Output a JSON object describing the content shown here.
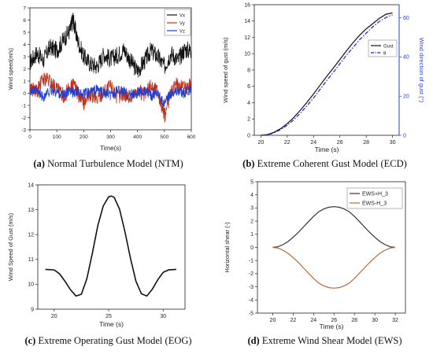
{
  "captions": [
    {
      "letter": "(a)",
      "text": " Normal Turbulence Model (NTM)"
    },
    {
      "letter": "(b)",
      "text": " Extreme Coherent Gust Model (ECD)"
    },
    {
      "letter": "(c)",
      "text": " Extreme Operating Gust Model (EOG)"
    },
    {
      "letter": "(d)",
      "text": " Extreme Wind Shear Model (EWS)"
    }
  ],
  "chart_data": [
    {
      "type": "line",
      "title": "",
      "xlabel": "Time(s)",
      "ylabel": "Wind speed(m/s)",
      "xlim": [
        0,
        600
      ],
      "ylim": [
        -3,
        7
      ],
      "xticks": [
        0,
        100,
        200,
        300,
        400,
        500,
        600
      ],
      "yticks": [
        -3,
        -2,
        -1,
        0,
        1,
        2,
        3,
        4,
        5,
        6,
        7
      ],
      "legend_position": "top-right",
      "x": [
        0,
        25,
        50,
        75,
        100,
        125,
        150,
        160,
        175,
        200,
        225,
        250,
        275,
        300,
        325,
        350,
        375,
        400,
        425,
        450,
        475,
        500,
        525,
        550,
        575,
        600
      ],
      "series": [
        {
          "name": "Vx",
          "color": "#111111",
          "values": [
            2.5,
            3.3,
            2.7,
            3.8,
            3.5,
            4.4,
            5.2,
            6.1,
            4.5,
            3.0,
            2.4,
            2.2,
            3.2,
            2.8,
            3.1,
            3.6,
            2.6,
            1.8,
            2.6,
            3.5,
            3.0,
            2.2,
            3.3,
            2.7,
            3.6,
            3.5
          ]
        },
        {
          "name": "Vy",
          "color": "#c0301a",
          "values": [
            0.5,
            0.1,
            1.2,
            1.0,
            0.3,
            -0.2,
            0.4,
            0.8,
            0.0,
            -0.8,
            -0.1,
            -0.5,
            0.2,
            0.6,
            -0.3,
            0.0,
            -0.4,
            0.3,
            -0.2,
            0.6,
            0.2,
            -1.9,
            0.2,
            0.8,
            0.4,
            1.0
          ]
        },
        {
          "name": "Vz",
          "color": "#1f3fd1",
          "values": [
            0.3,
            0.1,
            -0.3,
            0.2,
            0.1,
            -0.2,
            0.3,
            0.0,
            0.2,
            -0.1,
            0.1,
            0.3,
            0.0,
            -0.2,
            0.2,
            0.1,
            -0.1,
            0.0,
            0.2,
            -0.2,
            0.1,
            -0.9,
            0.1,
            0.2,
            0.0,
            0.3
          ]
        }
      ]
    },
    {
      "type": "line",
      "title": "",
      "xlabel": "Time (s)",
      "ylabel": "Wind speed of gust (m/s)",
      "y2label": "Wind direction of gust (°)",
      "xlim": [
        19.5,
        30.5
      ],
      "ylim": [
        0,
        16
      ],
      "y2lim": [
        0,
        66.7
      ],
      "xticks": [
        20,
        22,
        24,
        26,
        28,
        30
      ],
      "yticks": [
        0,
        2,
        4,
        6,
        8,
        10,
        12,
        14,
        16
      ],
      "y2ticks": [
        0,
        20,
        40,
        60
      ],
      "legend_position": "top-right",
      "x": [
        20,
        20.5,
        21,
        21.5,
        22,
        22.5,
        23,
        23.5,
        24,
        24.5,
        25,
        25.5,
        26,
        26.5,
        27,
        27.5,
        28,
        28.5,
        29,
        29.5,
        30
      ],
      "series": [
        {
          "name": "Gust",
          "color": "#111111",
          "axis": "left",
          "values": [
            0.0,
            0.09,
            0.37,
            0.82,
            1.43,
            2.19,
            3.07,
            4.04,
            5.07,
            6.15,
            7.22,
            8.24,
            9.28,
            10.35,
            11.36,
            12.26,
            13.05,
            13.68,
            14.33,
            14.83,
            15.0
          ]
        },
        {
          "name": "θ",
          "color": "#1f1fd1",
          "axis": "right",
          "values": [
            0.0,
            0.2,
            1.2,
            2.9,
            5.2,
            8.0,
            11.3,
            15.1,
            19.1,
            23.5,
            28.0,
            32.1,
            36.6,
            40.9,
            44.9,
            48.8,
            52.2,
            55.4,
            58.2,
            60.2,
            61.5
          ]
        }
      ]
    },
    {
      "type": "line",
      "title": "",
      "xlabel": "Time (s)",
      "ylabel": "Wind Speed of Gust (m/s)",
      "xlim": [
        18.5,
        32
      ],
      "ylim": [
        9,
        14
      ],
      "xticks": [
        20,
        25,
        30
      ],
      "yticks": [
        9,
        10,
        11,
        12,
        13,
        14
      ],
      "x": [
        19.2,
        20,
        20.5,
        21,
        21.5,
        22,
        22.5,
        23,
        23.5,
        24,
        24.5,
        25,
        25.25,
        25.5,
        26,
        26.5,
        27,
        27.5,
        28,
        28.5,
        29,
        29.5,
        30,
        30.5,
        31.2
      ],
      "series": [
        {
          "name": "",
          "color": "#111111",
          "values": [
            10.6,
            10.58,
            10.42,
            10.12,
            9.78,
            9.53,
            9.6,
            10.22,
            11.25,
            12.35,
            13.15,
            13.52,
            13.55,
            13.5,
            13.02,
            12.1,
            11.05,
            10.12,
            9.62,
            9.53,
            9.8,
            10.18,
            10.48,
            10.58,
            10.6
          ]
        }
      ]
    },
    {
      "type": "line",
      "title": "",
      "xlabel": "Time (s)",
      "ylabel": "Horizontal shear (-)",
      "xlim": [
        18.5,
        33
      ],
      "ylim": [
        -5,
        5
      ],
      "xticks": [
        20,
        22,
        24,
        26,
        28,
        30,
        32
      ],
      "yticks": [
        -5,
        -4,
        -3,
        -2,
        -1,
        0,
        1,
        2,
        3,
        4,
        5
      ],
      "legend_position": "top-right",
      "x": [
        20,
        20.5,
        21,
        21.5,
        22,
        22.5,
        23,
        23.5,
        24,
        24.5,
        25,
        25.5,
        26,
        26.5,
        27,
        27.5,
        28,
        28.5,
        29,
        29.5,
        30,
        30.5,
        31,
        31.5,
        32
      ],
      "series": [
        {
          "name": "EWS+H_3",
          "color": "#333333",
          "values": [
            0.0,
            0.05,
            0.21,
            0.45,
            0.77,
            1.14,
            1.55,
            1.96,
            2.36,
            2.71,
            2.93,
            3.06,
            3.1,
            3.06,
            2.93,
            2.71,
            2.36,
            1.96,
            1.55,
            1.14,
            0.77,
            0.45,
            0.21,
            0.05,
            0.0
          ]
        },
        {
          "name": "EWS-H_3",
          "color": "#b86a3c",
          "values": [
            0.0,
            -0.05,
            -0.21,
            -0.45,
            -0.77,
            -1.14,
            -1.55,
            -1.96,
            -2.36,
            -2.71,
            -2.93,
            -3.06,
            -3.1,
            -3.06,
            -2.93,
            -2.71,
            -2.36,
            -1.96,
            -1.55,
            -1.14,
            -0.77,
            -0.45,
            -0.21,
            -0.05,
            0.0
          ]
        }
      ]
    }
  ]
}
